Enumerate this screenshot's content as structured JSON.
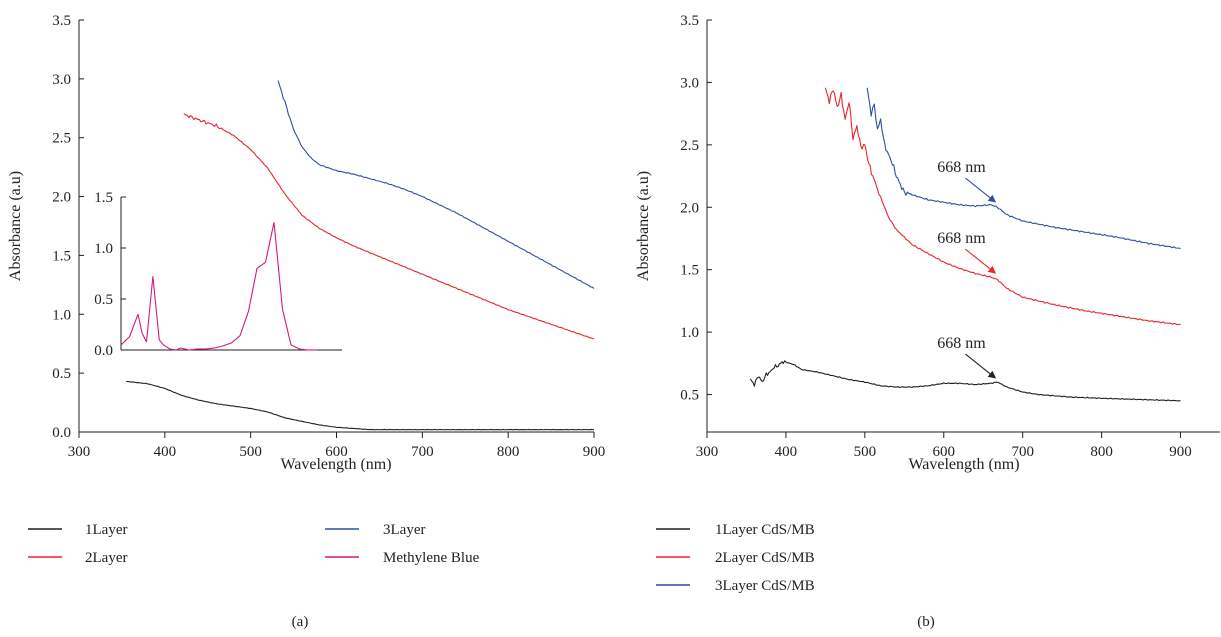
{
  "colors": {
    "layer1": "#231f20",
    "layer2": "#e8262d",
    "layer3": "#2f4fa1",
    "methylene_blue": "#d6197f",
    "axis": "#231f20"
  },
  "chart_data": [
    {
      "panel": "(a)",
      "type": "line",
      "xlabel": "Wavelength (nm)",
      "ylabel": "Absorbance (a.u)",
      "xlim": [
        300,
        900
      ],
      "ylim": [
        0,
        3.5
      ],
      "xticks": [
        "300",
        "400",
        "500",
        "600",
        "700",
        "800",
        "900"
      ],
      "yticks": [
        "0.0",
        "0.5",
        "1.0",
        "1.5",
        "2.0",
        "2.5",
        "3.0",
        "3.5"
      ],
      "legend_position": "bottom",
      "series": [
        {
          "name": "1Layer",
          "color_key": "layer1",
          "x": [
            355,
            380,
            400,
            420,
            440,
            460,
            480,
            500,
            520,
            540,
            560,
            580,
            600,
            620,
            640,
            660,
            700,
            750,
            800,
            850,
            900
          ],
          "y": [
            0.43,
            0.41,
            0.37,
            0.31,
            0.27,
            0.24,
            0.22,
            0.2,
            0.17,
            0.12,
            0.09,
            0.06,
            0.04,
            0.03,
            0.02,
            0.02,
            0.02,
            0.02,
            0.02,
            0.02,
            0.02
          ]
        },
        {
          "name": "2Layer",
          "color_key": "layer2",
          "x": [
            422,
            440,
            460,
            480,
            500,
            520,
            540,
            560,
            580,
            600,
            620,
            640,
            660,
            680,
            700,
            720,
            740,
            760,
            780,
            800,
            820,
            840,
            860,
            880,
            900
          ],
          "y": [
            2.7,
            2.65,
            2.6,
            2.52,
            2.4,
            2.24,
            2.02,
            1.84,
            1.73,
            1.65,
            1.58,
            1.52,
            1.46,
            1.4,
            1.34,
            1.28,
            1.22,
            1.16,
            1.1,
            1.04,
            0.99,
            0.94,
            0.89,
            0.84,
            0.79
          ]
        },
        {
          "name": "3Layer",
          "color_key": "layer3",
          "x": [
            532,
            540,
            550,
            560,
            570,
            580,
            600,
            620,
            640,
            660,
            680,
            700,
            720,
            740,
            760,
            780,
            800,
            820,
            840,
            860,
            880,
            900
          ],
          "y": [
            2.98,
            2.8,
            2.57,
            2.42,
            2.33,
            2.27,
            2.22,
            2.19,
            2.15,
            2.11,
            2.06,
            2.0,
            1.93,
            1.86,
            1.78,
            1.7,
            1.62,
            1.54,
            1.46,
            1.38,
            1.3,
            1.22
          ]
        }
      ],
      "inset": {
        "xlim": [
          380,
          900
        ],
        "ylim": [
          0,
          1.5
        ],
        "yticks": [
          "0.0",
          "0.5",
          "1.0",
          "1.5"
        ],
        "series": [
          {
            "name": "Methylene Blue",
            "color_key": "methylene_blue",
            "x": [
              380,
              400,
              420,
              430,
              440,
              455,
              470,
              480,
              495,
              510,
              520,
              540,
              560,
              580,
              600,
              620,
              640,
              660,
              680,
              700,
              720,
              740,
              760,
              780,
              800,
              820,
              840
            ],
            "y": [
              0.05,
              0.13,
              0.35,
              0.16,
              0.08,
              0.72,
              0.1,
              0.05,
              0.01,
              0.0,
              0.02,
              0.0,
              0.01,
              0.01,
              0.02,
              0.04,
              0.07,
              0.14,
              0.38,
              0.8,
              0.86,
              1.25,
              0.4,
              0.05,
              0.01,
              0.0,
              0.0
            ]
          }
        ]
      }
    },
    {
      "panel": "(b)",
      "type": "line",
      "xlabel": "Wavelength (nm)",
      "ylabel": "Absorbance (a.u)",
      "xlim": [
        300,
        950
      ],
      "ylim": [
        0.2,
        3.5
      ],
      "xticks": [
        "300",
        "400",
        "500",
        "600",
        "700",
        "800",
        "900"
      ],
      "yticks": [
        "0.5",
        "1.0",
        "1.5",
        "2.0",
        "2.5",
        "3.0",
        "3.5"
      ],
      "legend_position": "bottom",
      "series": [
        {
          "name": "1Layer CdS/MB",
          "color_key": "layer1",
          "x": [
            355,
            360,
            365,
            370,
            375,
            380,
            385,
            390,
            395,
            400,
            405,
            410,
            415,
            420,
            440,
            460,
            480,
            500,
            520,
            540,
            560,
            580,
            600,
            620,
            640,
            660,
            668,
            680,
            700,
            720,
            760,
            800,
            850,
            900
          ],
          "y": [
            0.62,
            0.58,
            0.65,
            0.6,
            0.66,
            0.68,
            0.72,
            0.73,
            0.76,
            0.76,
            0.75,
            0.74,
            0.72,
            0.7,
            0.68,
            0.65,
            0.62,
            0.6,
            0.57,
            0.56,
            0.56,
            0.57,
            0.59,
            0.59,
            0.58,
            0.59,
            0.6,
            0.56,
            0.52,
            0.5,
            0.48,
            0.47,
            0.46,
            0.45
          ]
        },
        {
          "name": "2Layer CdS/MB",
          "color_key": "layer2",
          "x": [
            450,
            455,
            460,
            465,
            470,
            475,
            480,
            485,
            490,
            495,
            500,
            505,
            510,
            520,
            530,
            540,
            560,
            580,
            600,
            620,
            640,
            660,
            668,
            680,
            700,
            740,
            780,
            820,
            860,
            900
          ],
          "y": [
            2.95,
            2.85,
            2.95,
            2.8,
            2.9,
            2.7,
            2.85,
            2.55,
            2.65,
            2.48,
            2.5,
            2.35,
            2.25,
            2.08,
            1.92,
            1.82,
            1.7,
            1.63,
            1.56,
            1.51,
            1.47,
            1.44,
            1.42,
            1.35,
            1.28,
            1.22,
            1.17,
            1.13,
            1.09,
            1.06
          ]
        },
        {
          "name": "3Layer CdS/MB",
          "color_key": "layer3",
          "x": [
            503,
            508,
            512,
            516,
            520,
            525,
            530,
            535,
            540,
            545,
            550,
            560,
            570,
            580,
            600,
            620,
            640,
            660,
            668,
            680,
            700,
            740,
            780,
            820,
            860,
            900
          ],
          "y": [
            2.95,
            2.75,
            2.82,
            2.62,
            2.7,
            2.5,
            2.42,
            2.35,
            2.25,
            2.18,
            2.12,
            2.1,
            2.08,
            2.06,
            2.04,
            2.02,
            2.01,
            2.02,
            2.0,
            1.94,
            1.89,
            1.84,
            1.8,
            1.76,
            1.71,
            1.67
          ]
        }
      ],
      "annotations": [
        {
          "text": "668 nm",
          "color_key": "layer3",
          "x": 668,
          "y": 2.01
        },
        {
          "text": "668 nm",
          "color_key": "layer2",
          "x": 668,
          "y": 1.44
        },
        {
          "text": "668 nm",
          "color_key": "layer1",
          "x": 668,
          "y": 0.6
        }
      ]
    }
  ]
}
